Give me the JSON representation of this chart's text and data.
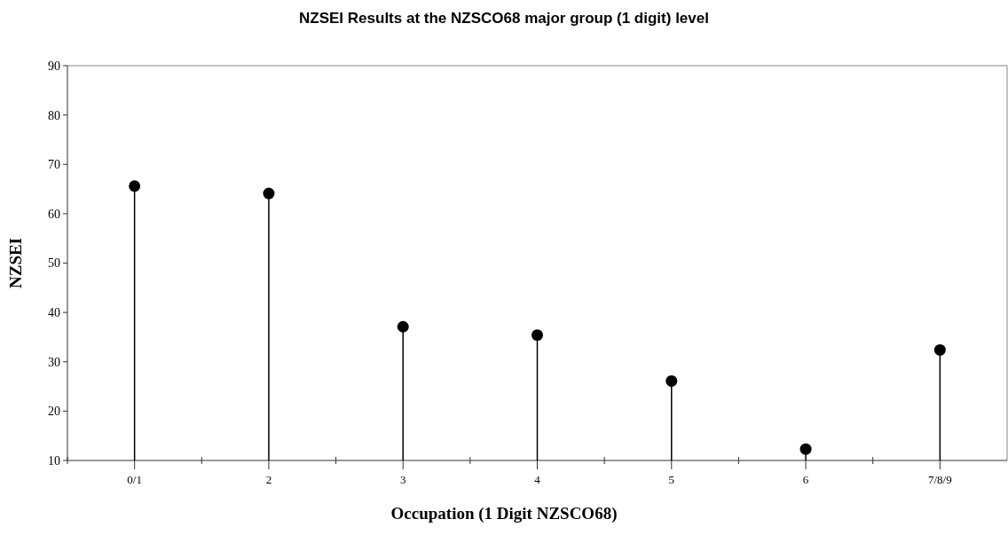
{
  "chart_data": {
    "type": "lollipop",
    "title": "NZSEI Results at the NZSCO68 major group (1 digit) level",
    "xlabel": "Occupation (1 Digit NZSCO68)",
    "ylabel": "NZSEI",
    "categories": [
      "0/1",
      "2",
      "3",
      "4",
      "5",
      "6",
      "7/8/9"
    ],
    "values": [
      65.6,
      64.1,
      37.1,
      35.4,
      26.1,
      12.3,
      32.4
    ],
    "color": "#000000",
    "marker": "circle",
    "ylim": [
      10,
      90
    ],
    "yticks": [
      10,
      20,
      30,
      40,
      50,
      60,
      70,
      80,
      90
    ],
    "grid": false
  }
}
